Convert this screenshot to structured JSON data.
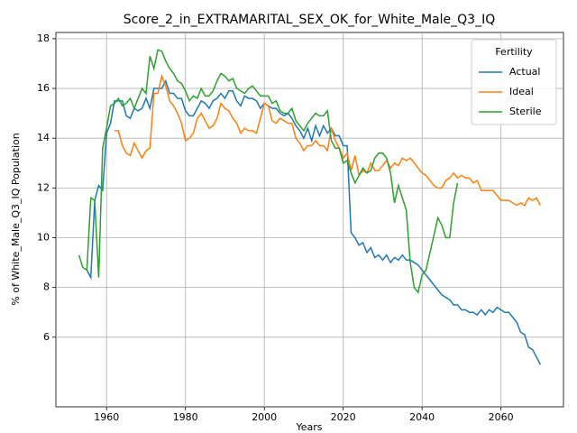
{
  "chart_data": {
    "type": "line",
    "title": "Score_2_in_EXTRAMARITAL_SEX_OK_for_White_Male_Q3_IQ",
    "x_label": "Years",
    "y_label": "% of White_Male_Q3_IQ Population",
    "legend_title": "Fertility",
    "legend_loc": "upper right",
    "grid": true,
    "xlim": [
      1947.15,
      2075.85
    ],
    "xticks": [
      1960,
      1980,
      2000,
      2020,
      2040,
      2060
    ],
    "ylim": [
      3.2,
      18.25
    ],
    "yticks": [
      6,
      8,
      10,
      12,
      14,
      16,
      18
    ],
    "x": [
      1953,
      1954,
      1955,
      1956,
      1957,
      1958,
      1959,
      1960,
      1961,
      1962,
      1963,
      1964,
      1965,
      1966,
      1967,
      1968,
      1969,
      1970,
      1971,
      1972,
      1973,
      1974,
      1975,
      1976,
      1977,
      1978,
      1979,
      1980,
      1981,
      1982,
      1983,
      1984,
      1985,
      1986,
      1987,
      1988,
      1989,
      1990,
      1991,
      1992,
      1993,
      1994,
      1995,
      1996,
      1997,
      1998,
      1999,
      2000,
      2001,
      2002,
      2003,
      2004,
      2005,
      2006,
      2007,
      2008,
      2009,
      2010,
      2011,
      2012,
      2013,
      2014,
      2015,
      2016,
      2017,
      2018,
      2019,
      2020,
      2021,
      2022,
      2023,
      2024,
      2025,
      2026,
      2027,
      2028,
      2029,
      2030,
      2031,
      2032,
      2033,
      2034,
      2035,
      2036,
      2037,
      2038,
      2039,
      2040,
      2041,
      2042,
      2043,
      2044,
      2045,
      2046,
      2047,
      2048,
      2049,
      2050,
      2051,
      2052,
      2053,
      2054,
      2055,
      2056,
      2057,
      2058,
      2059,
      2060,
      2061,
      2062,
      2063,
      2064,
      2065,
      2066,
      2067,
      2068,
      2069,
      2070
    ],
    "series": [
      {
        "name": "Actual",
        "color": "#1f77b4",
        "values": [
          null,
          null,
          8.7,
          8.4,
          11.5,
          12.1,
          11.9,
          14.2,
          14.6,
          15.5,
          15.5,
          15.5,
          14.9,
          14.8,
          15.2,
          15.1,
          15.2,
          15.6,
          15.2,
          16.0,
          16.0,
          16.0,
          16.3,
          15.8,
          15.8,
          15.6,
          15.6,
          15.1,
          14.9,
          14.9,
          15.2,
          15.5,
          15.4,
          15.2,
          15.5,
          15.6,
          15.8,
          15.6,
          15.9,
          15.9,
          15.5,
          15.3,
          15.7,
          15.6,
          15.6,
          15.5,
          15.2,
          15.4,
          15.3,
          15.2,
          15.2,
          15.0,
          14.9,
          15.0,
          14.8,
          14.5,
          14.3,
          14.0,
          14.4,
          13.9,
          14.5,
          14.1,
          14.5,
          14.2,
          14.4,
          14.1,
          14.1,
          13.7,
          13.7,
          10.2,
          10.0,
          9.7,
          9.8,
          9.4,
          9.6,
          9.2,
          9.3,
          9.1,
          9.3,
          9.0,
          9.2,
          9.1,
          9.3,
          9.1,
          9.1,
          9.0,
          8.9,
          8.7,
          8.5,
          8.3,
          8.1,
          7.9,
          7.7,
          7.6,
          7.5,
          7.3,
          7.3,
          7.1,
          7.1,
          7.0,
          7.0,
          6.9,
          7.1,
          6.9,
          7.1,
          7.0,
          7.2,
          7.1,
          7.0,
          7.0,
          6.8,
          6.6,
          6.2,
          6.1,
          5.6,
          5.5,
          5.2,
          4.9
        ]
      },
      {
        "name": "Ideal",
        "color": "#ff7f0e",
        "values": [
          null,
          null,
          null,
          null,
          null,
          null,
          null,
          null,
          null,
          14.3,
          14.3,
          13.7,
          13.4,
          13.3,
          13.8,
          13.5,
          13.2,
          13.5,
          13.6,
          15.8,
          15.8,
          16.5,
          16.1,
          15.5,
          15.3,
          15.0,
          14.6,
          13.9,
          14.0,
          14.2,
          14.8,
          15.0,
          14.7,
          14.4,
          14.5,
          14.8,
          15.4,
          15.2,
          15.1,
          14.8,
          14.6,
          14.2,
          14.4,
          14.3,
          14.3,
          14.2,
          14.8,
          15.4,
          15.3,
          14.7,
          14.6,
          14.8,
          14.7,
          14.6,
          14.6,
          14.0,
          13.8,
          13.5,
          13.7,
          13.7,
          13.9,
          13.7,
          13.7,
          13.5,
          14.4,
          13.9,
          13.6,
          13.2,
          13.4,
          12.7,
          13.3,
          12.5,
          12.7,
          12.6,
          13.0,
          12.7,
          12.7,
          12.9,
          13.1,
          12.8,
          13.0,
          12.9,
          13.2,
          13.1,
          13.2,
          13.0,
          12.8,
          12.6,
          12.5,
          12.3,
          12.1,
          12.0,
          12.0,
          12.3,
          12.4,
          12.6,
          12.4,
          12.5,
          12.4,
          12.4,
          12.2,
          12.3,
          11.9,
          11.9,
          11.9,
          11.9,
          11.7,
          11.5,
          11.5,
          11.5,
          11.4,
          11.3,
          11.4,
          11.3,
          11.6,
          11.5,
          11.6,
          11.3
        ]
      },
      {
        "name": "Sterile",
        "color": "#2ca02c",
        "values": [
          9.3,
          8.8,
          8.7,
          11.6,
          11.5,
          8.4,
          13.6,
          14.4,
          15.3,
          15.4,
          15.6,
          15.3,
          15.4,
          15.6,
          15.2,
          15.6,
          16.0,
          15.8,
          17.3,
          16.8,
          17.55,
          17.5,
          17.1,
          16.8,
          16.6,
          16.3,
          16.2,
          15.9,
          15.5,
          15.7,
          15.6,
          16.0,
          15.7,
          15.7,
          15.9,
          16.3,
          16.6,
          16.5,
          16.3,
          16.4,
          16.0,
          15.9,
          15.8,
          16.0,
          16.1,
          15.9,
          15.7,
          15.7,
          15.7,
          15.4,
          15.5,
          15.1,
          15.0,
          15.0,
          15.2,
          14.7,
          14.5,
          14.3,
          14.6,
          14.8,
          15.0,
          14.9,
          14.9,
          15.1,
          13.9,
          13.6,
          13.6,
          13.0,
          13.1,
          12.6,
          12.2,
          12.5,
          12.8,
          12.6,
          12.7,
          13.2,
          13.4,
          13.4,
          13.2,
          12.6,
          11.4,
          12.1,
          11.6,
          11.1,
          9.0,
          8.0,
          7.8,
          8.5,
          8.7,
          9.4,
          10.1,
          10.8,
          10.5,
          10.0,
          10.0,
          11.4,
          12.2,
          null,
          null,
          null,
          null,
          null,
          null,
          null,
          null,
          null,
          null,
          null,
          null,
          null,
          null,
          null,
          null,
          null,
          null,
          null,
          null,
          null
        ]
      }
    ]
  }
}
